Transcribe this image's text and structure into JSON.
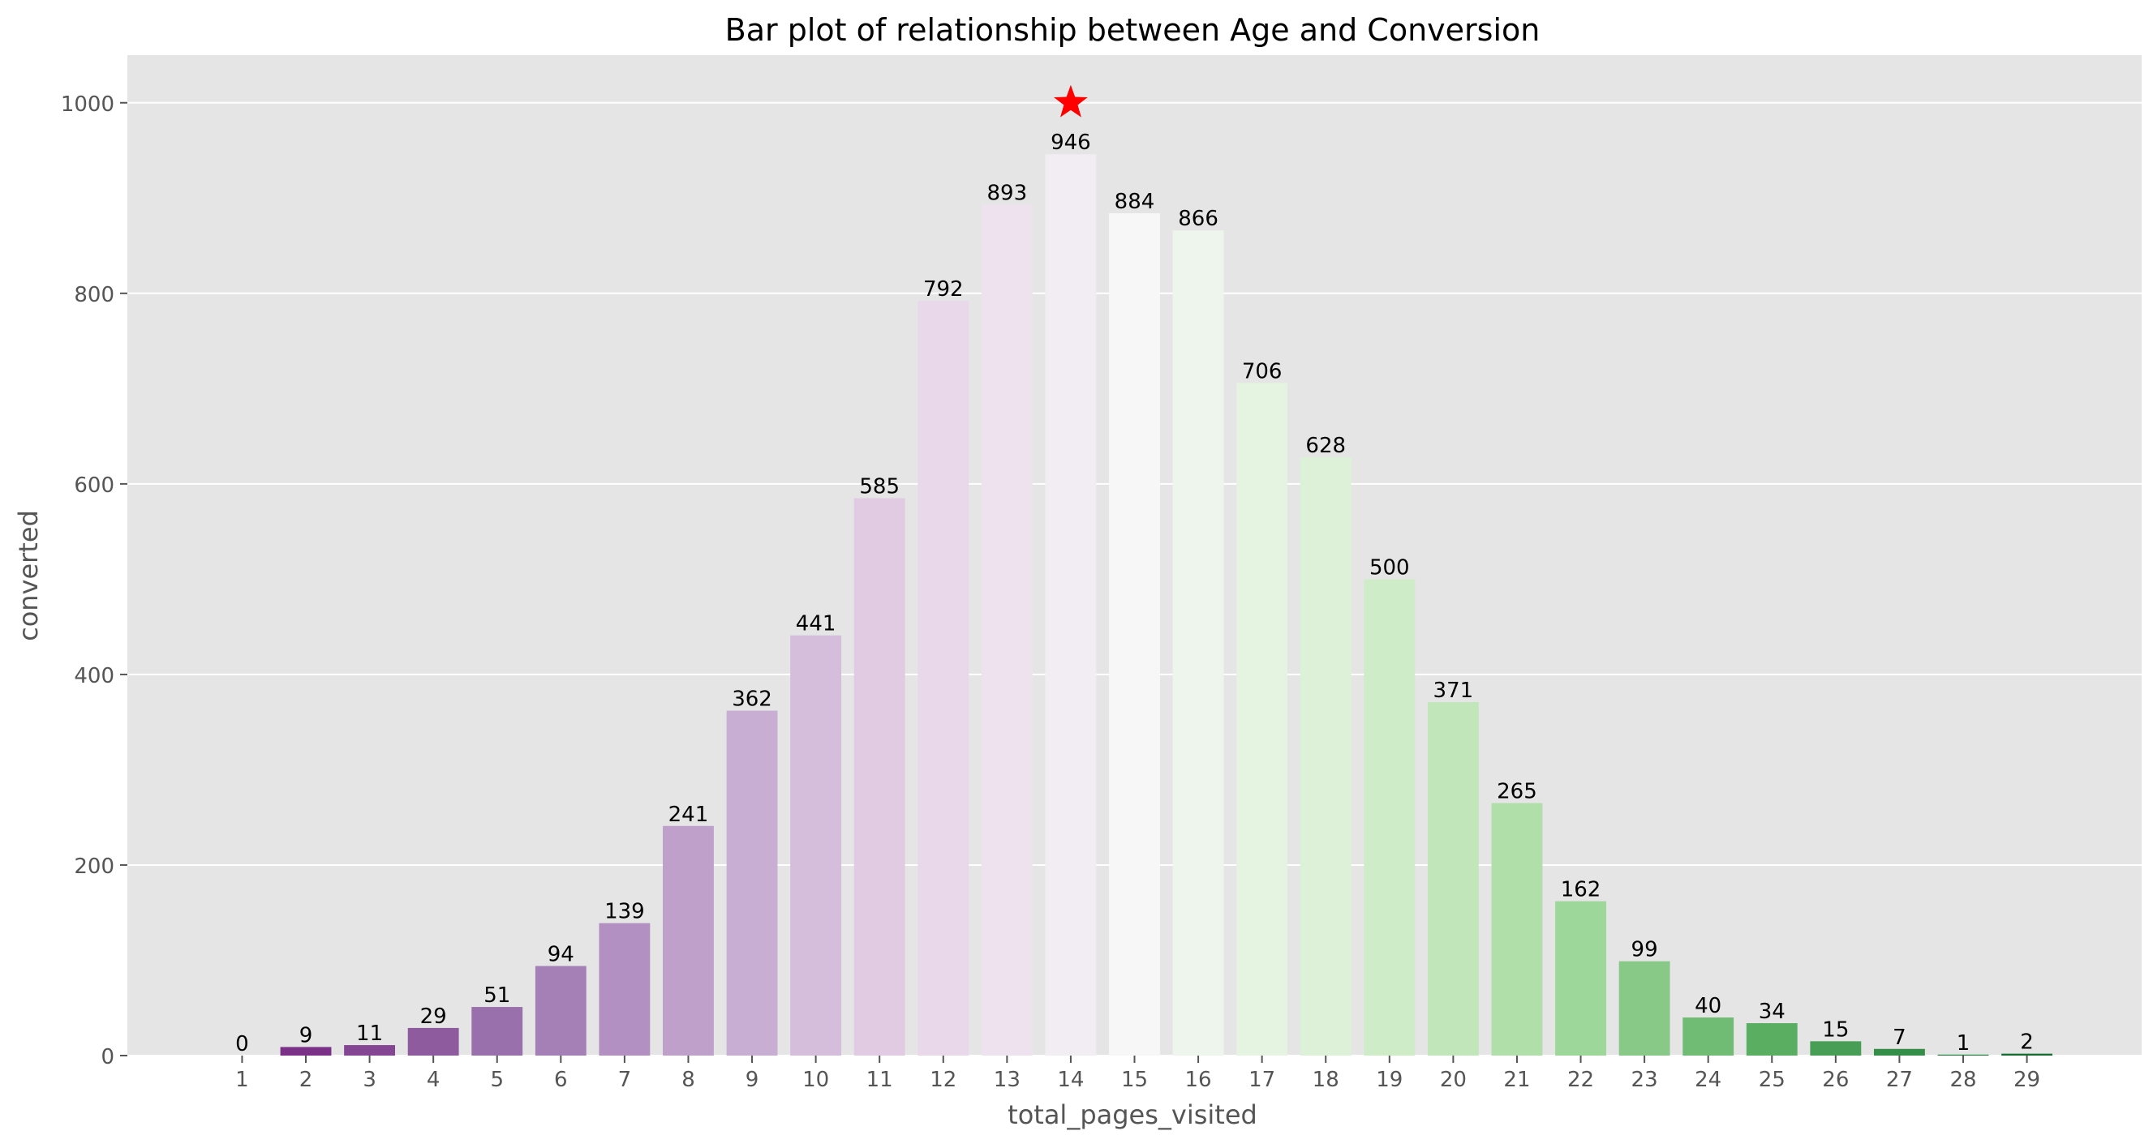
{
  "chart_data": {
    "type": "bar",
    "title": "Bar plot of relationship between Age and Conversion",
    "xlabel": "total_pages_visited",
    "ylabel": "converted",
    "categories": [
      "1",
      "2",
      "3",
      "4",
      "5",
      "6",
      "7",
      "8",
      "9",
      "10",
      "11",
      "12",
      "13",
      "14",
      "15",
      "16",
      "17",
      "18",
      "19",
      "20",
      "21",
      "22",
      "23",
      "24",
      "25",
      "26",
      "27",
      "28",
      "29"
    ],
    "values": [
      0,
      9,
      11,
      29,
      51,
      94,
      139,
      241,
      362,
      441,
      585,
      792,
      893,
      946,
      884,
      866,
      706,
      628,
      500,
      371,
      265,
      162,
      99,
      40,
      34,
      15,
      7,
      1,
      2
    ],
    "ylim": [
      0,
      1050
    ],
    "yticks": [
      0,
      200,
      400,
      600,
      800,
      1000
    ],
    "grid": true,
    "style": "ggplot",
    "colormap": "PRGn diverging (purple to white to green)",
    "annotations": [
      {
        "type": "marker",
        "shape": "star",
        "color": "#ff0000",
        "category": "14",
        "value": 1000
      }
    ],
    "colors": {
      "plot_background": "#e5e5e5",
      "grid": "#ffffff",
      "tick_text": "#555555",
      "label_text": "#555555",
      "title_text": "#000000",
      "bar_label_text": "#000000"
    }
  }
}
